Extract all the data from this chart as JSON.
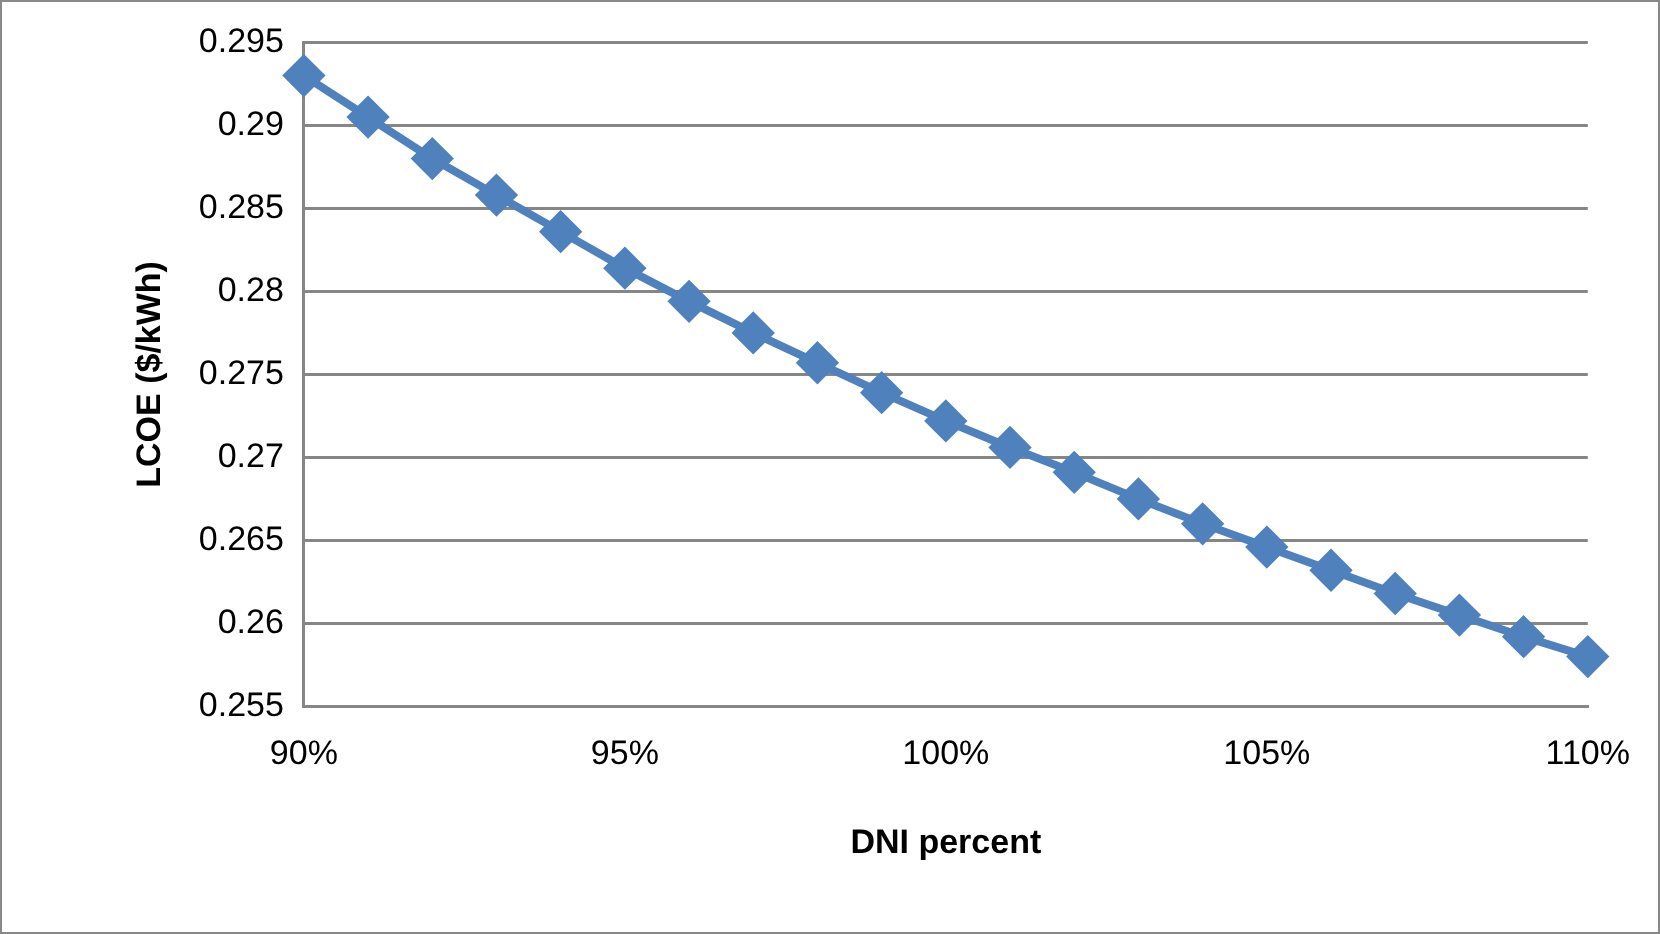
{
  "chart_data": {
    "type": "line",
    "xlabel": "DNI percent",
    "ylabel": "LCOE ($/kWh)",
    "x": [
      90,
      91,
      92,
      93,
      94,
      95,
      96,
      97,
      98,
      99,
      100,
      101,
      102,
      103,
      104,
      105,
      106,
      107,
      108,
      109,
      110
    ],
    "series": [
      {
        "color": "#4f81bd",
        "values": [
          0.293,
          0.2905,
          0.288,
          0.2858,
          0.2836,
          0.2814,
          0.2794,
          0.2775,
          0.2757,
          0.2739,
          0.2722,
          0.2706,
          0.2691,
          0.2675,
          0.266,
          0.2646,
          0.2632,
          0.2618,
          0.2605,
          0.2592,
          0.258
        ]
      }
    ],
    "xlim": [
      90,
      110
    ],
    "xticks": [
      {
        "value": 90,
        "label": "90%"
      },
      {
        "value": 95,
        "label": "95%"
      },
      {
        "value": 100,
        "label": "100%"
      },
      {
        "value": 105,
        "label": "105%"
      },
      {
        "value": 110,
        "label": "110%"
      }
    ],
    "ylim": [
      0.255,
      0.295
    ],
    "yticks": [
      0.255,
      0.26,
      0.265,
      0.27,
      0.275,
      0.28,
      0.285,
      0.29,
      0.295
    ],
    "grid": "y",
    "legend": false,
    "marker": "diamond",
    "line_style": "solid"
  }
}
